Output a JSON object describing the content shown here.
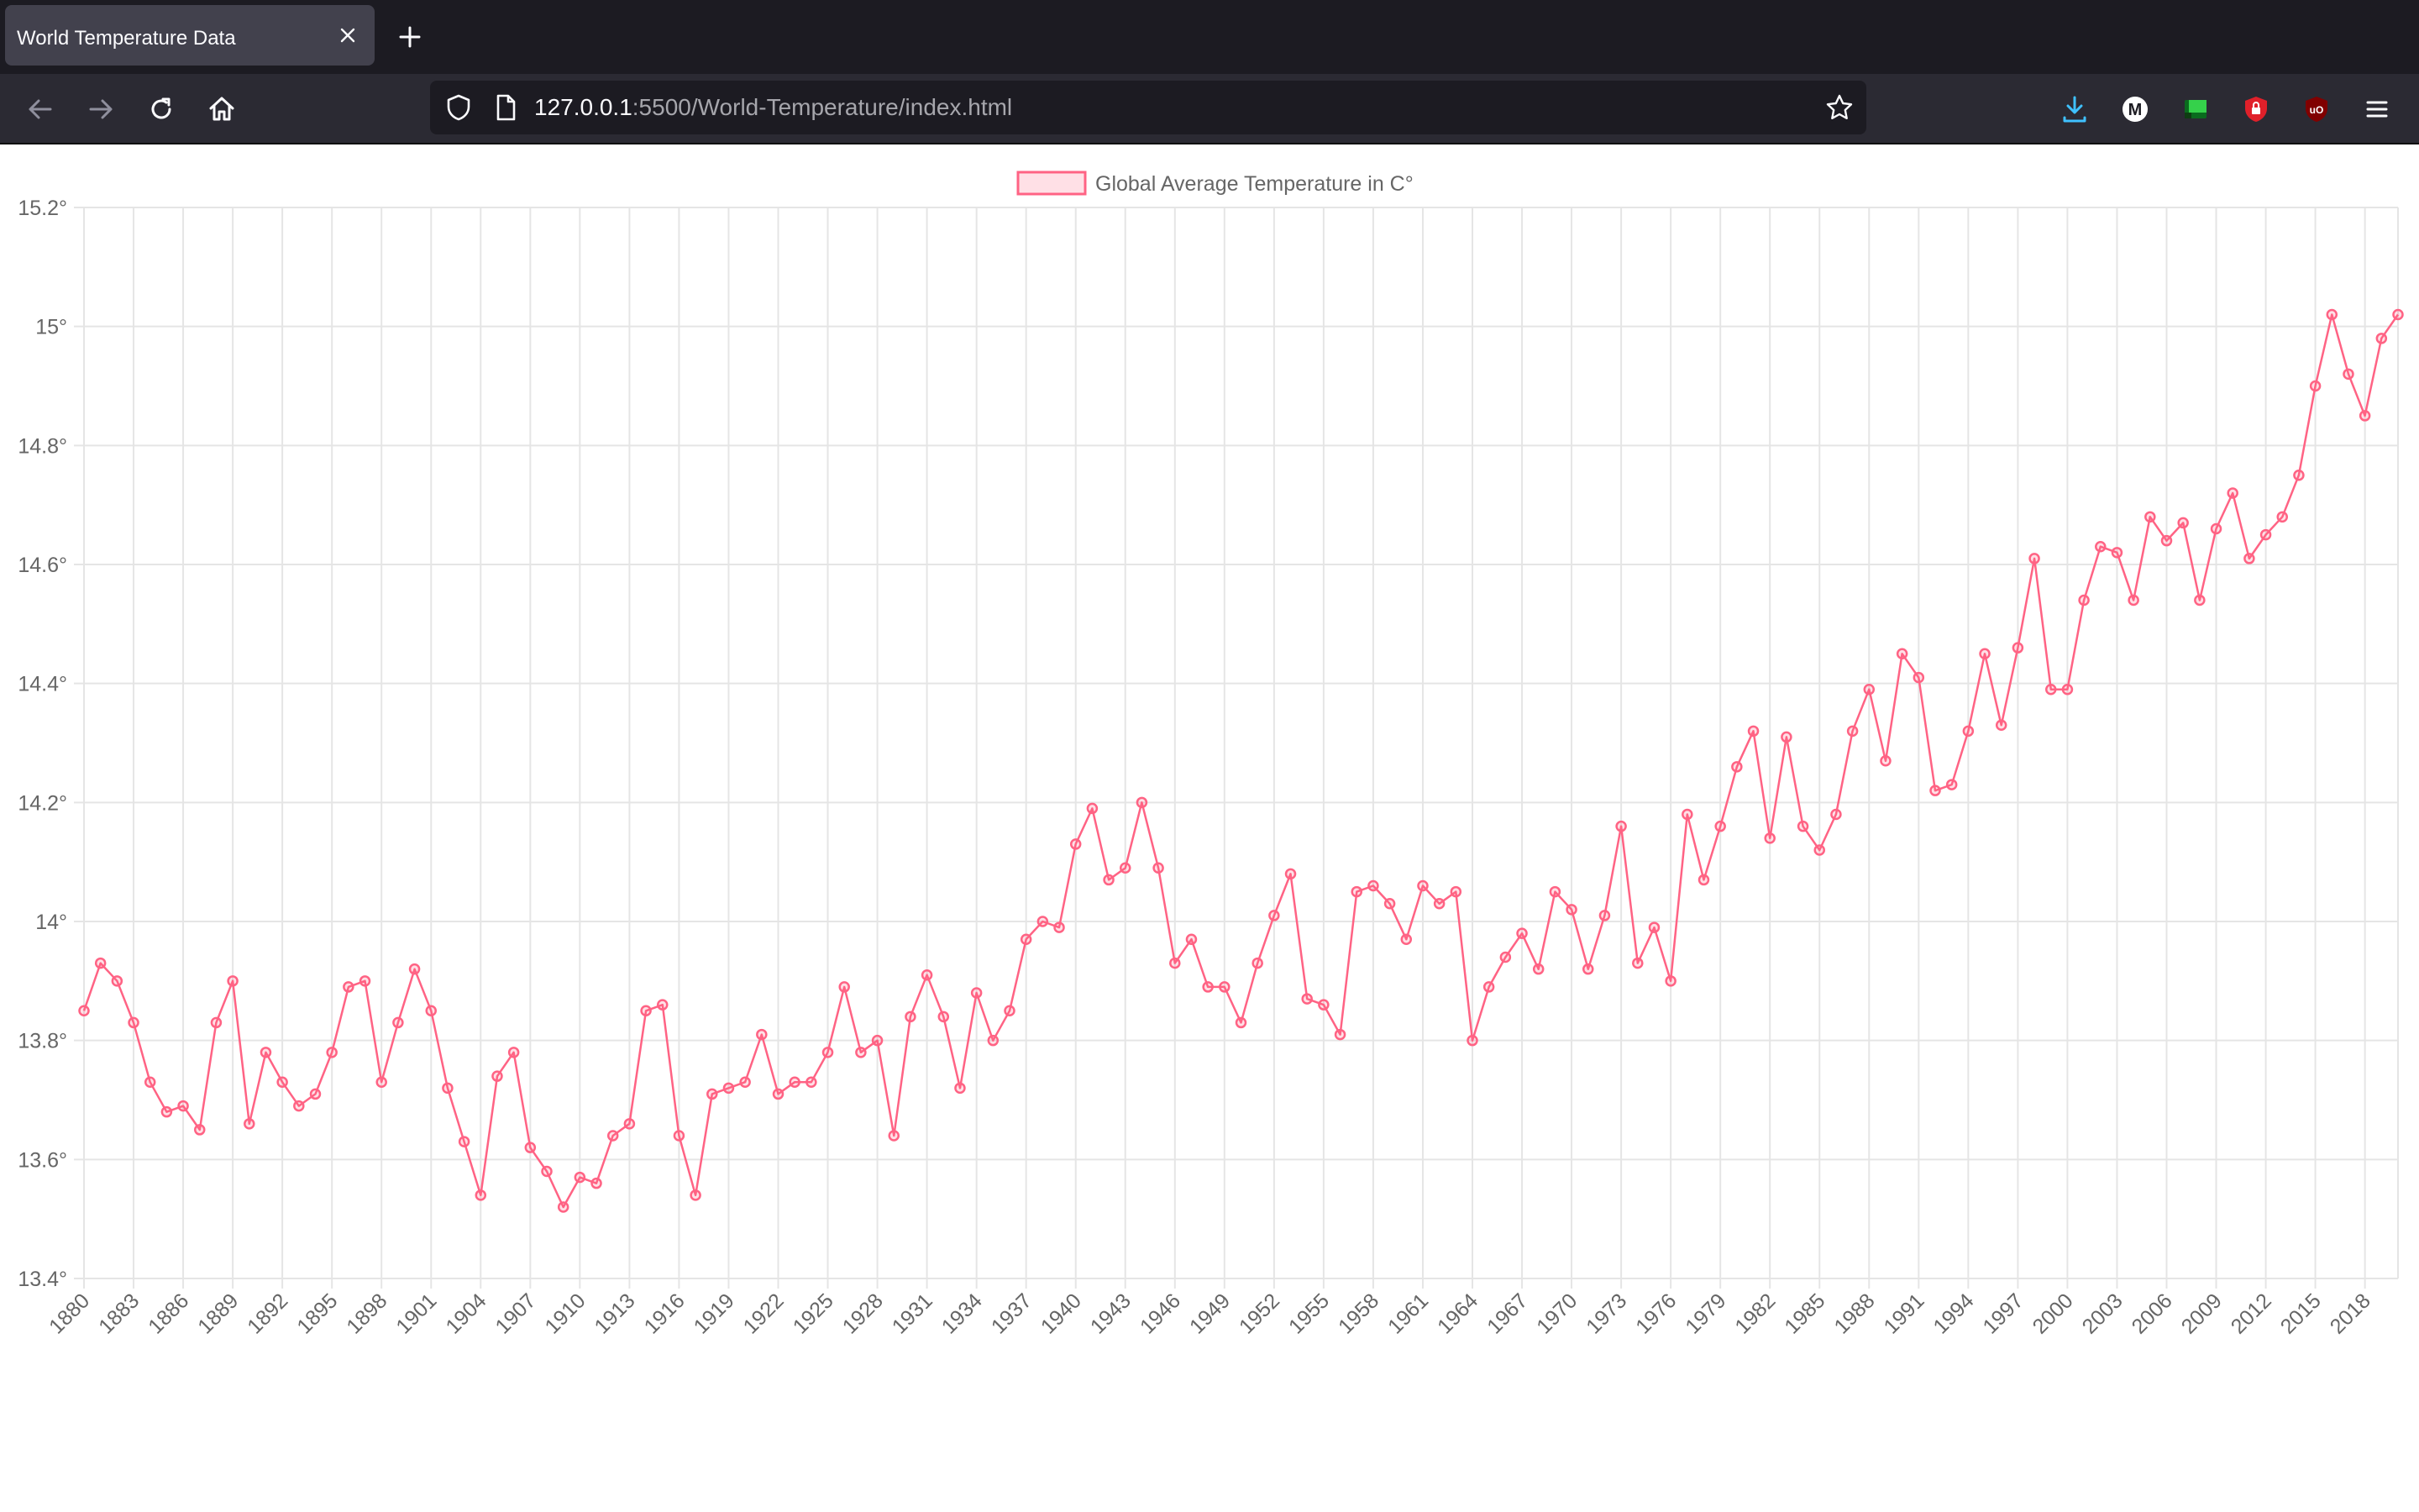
{
  "browser": {
    "tab_title": "World Temperature Data",
    "url_host": "127.0.0.1",
    "url_rest": ":5500/World-Temperature/index.html"
  },
  "colors": {
    "series_line": "#ff6384",
    "series_fill": "rgba(255,99,132,0.2)",
    "grid": "#e5e5e5",
    "tick_text": "#666666",
    "tabbar": "#1c1b22",
    "navbar": "#2b2a33"
  },
  "icons": {
    "back": "arrow-left-icon",
    "forward": "arrow-right-icon",
    "reload": "reload-icon",
    "home": "home-icon",
    "download": "download-icon",
    "ext1": "m-extension-icon",
    "ext2": "green-extension-icon",
    "ext3": "red-lock-extension-icon",
    "ext4": "ublock-icon",
    "menu": "hamburger-menu-icon"
  },
  "chart_data": {
    "type": "line",
    "title": "",
    "xlabel": "",
    "ylabel": "",
    "legend": "top-center",
    "grid": true,
    "ylim": [
      13.4,
      15.2
    ],
    "y_ticks": [
      "15.2°",
      "15°",
      "14.8°",
      "14.6°",
      "14.4°",
      "14.2°",
      "14°",
      "13.8°",
      "13.6°",
      "13.4°"
    ],
    "x_tick_labels": [
      "1880",
      "1883",
      "1886",
      "1889",
      "1892",
      "1895",
      "1898",
      "1901",
      "1904",
      "1907",
      "1910",
      "1913",
      "1916",
      "1919",
      "1922",
      "1925",
      "1928",
      "1931",
      "1934",
      "1937",
      "1940",
      "1943",
      "1946",
      "1949",
      "1952",
      "1955",
      "1958",
      "1961",
      "1964",
      "1967",
      "1970",
      "1973",
      "1976",
      "1979",
      "1982",
      "1985",
      "1988",
      "1991",
      "1994",
      "1997",
      "2000",
      "2003",
      "2006",
      "2009",
      "2012",
      "2015",
      "2018"
    ],
    "x": [
      1880,
      1881,
      1882,
      1883,
      1884,
      1885,
      1886,
      1887,
      1888,
      1889,
      1890,
      1891,
      1892,
      1893,
      1894,
      1895,
      1896,
      1897,
      1898,
      1899,
      1900,
      1901,
      1902,
      1903,
      1904,
      1905,
      1906,
      1907,
      1908,
      1909,
      1910,
      1911,
      1912,
      1913,
      1914,
      1915,
      1916,
      1917,
      1918,
      1919,
      1920,
      1921,
      1922,
      1923,
      1924,
      1925,
      1926,
      1927,
      1928,
      1929,
      1930,
      1931,
      1932,
      1933,
      1934,
      1935,
      1936,
      1937,
      1938,
      1939,
      1940,
      1941,
      1942,
      1943,
      1944,
      1945,
      1946,
      1947,
      1948,
      1949,
      1950,
      1951,
      1952,
      1953,
      1954,
      1955,
      1956,
      1957,
      1958,
      1959,
      1960,
      1961,
      1962,
      1963,
      1964,
      1965,
      1966,
      1967,
      1968,
      1969,
      1970,
      1971,
      1972,
      1973,
      1974,
      1975,
      1976,
      1977,
      1978,
      1979,
      1980,
      1981,
      1982,
      1983,
      1984,
      1985,
      1986,
      1987,
      1988,
      1989,
      1990,
      1991,
      1992,
      1993,
      1994,
      1995,
      1996,
      1997,
      1998,
      1999,
      2000,
      2001,
      2002,
      2003,
      2004,
      2005,
      2006,
      2007,
      2008,
      2009,
      2010,
      2011,
      2012,
      2013,
      2014,
      2015,
      2016,
      2017,
      2018,
      2019,
      2020
    ],
    "series": [
      {
        "name": "Global Average Temperature in C°",
        "values": [
          13.85,
          13.93,
          13.9,
          13.83,
          13.73,
          13.68,
          13.69,
          13.65,
          13.83,
          13.9,
          13.66,
          13.78,
          13.73,
          13.69,
          13.71,
          13.78,
          13.89,
          13.9,
          13.73,
          13.83,
          13.92,
          13.85,
          13.72,
          13.63,
          13.54,
          13.74,
          13.78,
          13.62,
          13.58,
          13.52,
          13.57,
          13.56,
          13.64,
          13.66,
          13.85,
          13.86,
          13.64,
          13.54,
          13.71,
          13.72,
          13.73,
          13.81,
          13.71,
          13.73,
          13.73,
          13.78,
          13.89,
          13.78,
          13.8,
          13.64,
          13.84,
          13.91,
          13.84,
          13.72,
          13.88,
          13.8,
          13.85,
          13.97,
          14.0,
          13.99,
          14.13,
          14.19,
          14.07,
          14.09,
          14.2,
          14.09,
          13.93,
          13.97,
          13.89,
          13.89,
          13.83,
          13.93,
          14.01,
          14.08,
          13.87,
          13.86,
          13.81,
          14.05,
          14.06,
          14.03,
          13.97,
          14.06,
          14.03,
          14.05,
          13.8,
          13.89,
          13.94,
          13.98,
          13.92,
          14.05,
          14.02,
          13.92,
          14.01,
          14.16,
          13.93,
          13.99,
          13.9,
          14.18,
          14.07,
          14.16,
          14.26,
          14.32,
          14.14,
          14.31,
          14.16,
          14.12,
          14.18,
          14.32,
          14.39,
          14.27,
          14.45,
          14.41,
          14.22,
          14.23,
          14.32,
          14.45,
          14.33,
          14.46,
          14.61,
          14.39,
          14.39,
          14.54,
          14.63,
          14.62,
          14.54,
          14.68,
          14.64,
          14.67,
          14.54,
          14.66,
          14.72,
          14.61,
          14.65,
          14.68,
          14.75,
          14.9,
          15.02,
          14.92,
          14.85,
          14.98,
          15.02
        ]
      }
    ]
  }
}
